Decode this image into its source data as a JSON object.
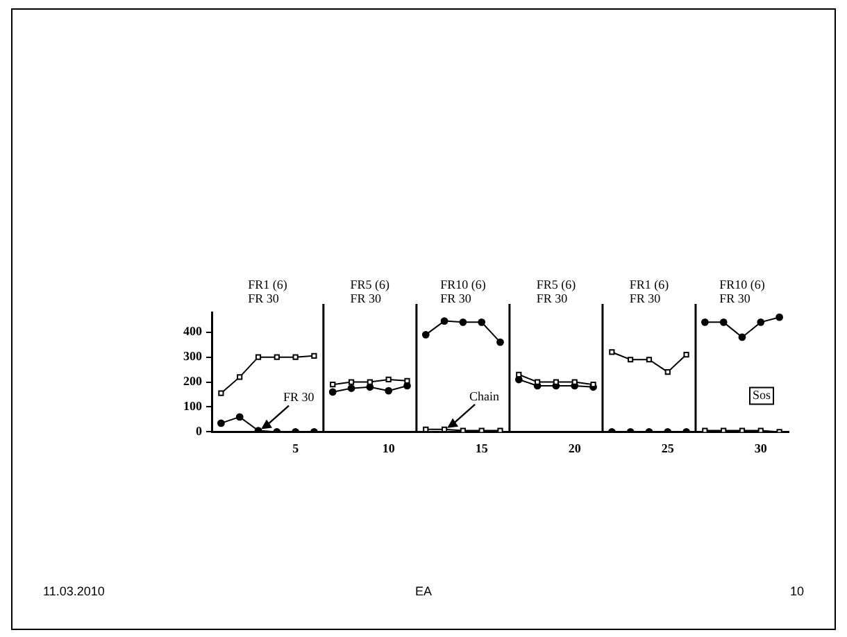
{
  "chart_data": {
    "type": "line",
    "x": [
      1,
      2,
      3,
      4,
      5,
      6,
      6.5,
      7,
      8,
      9,
      10,
      11,
      11.5,
      12,
      13,
      14,
      15,
      16,
      16.5,
      17,
      18,
      19,
      20,
      21,
      21.5,
      22,
      23,
      24,
      25,
      26,
      26.5,
      27,
      28,
      29,
      30,
      31
    ],
    "series": [
      {
        "color": "#000000",
        "marker": "square",
        "values": [
          155,
          220,
          300,
          300,
          300,
          305,
          null,
          190,
          200,
          200,
          210,
          205,
          null,
          10,
          10,
          5,
          5,
          5,
          null,
          230,
          200,
          200,
          200,
          190,
          null,
          320,
          290,
          290,
          240,
          310,
          null,
          5,
          5,
          5,
          5,
          0
        ]
      },
      {
        "color": "#000000",
        "marker": "circle",
        "values": [
          35,
          60,
          5,
          0,
          0,
          0,
          null,
          160,
          175,
          180,
          165,
          185,
          null,
          390,
          445,
          440,
          440,
          360,
          null,
          210,
          185,
          185,
          185,
          180,
          null,
          0,
          0,
          0,
          0,
          0,
          null,
          440,
          440,
          380,
          440,
          460
        ]
      }
    ],
    "xlim": [
      0.5,
      31.5
    ],
    "xticks": [
      5,
      10,
      15,
      20,
      25,
      30
    ],
    "ylim": [
      0,
      480
    ],
    "yticks": [
      0,
      100,
      200,
      300,
      400
    ],
    "ref_lines": [
      {
        "axis": "x",
        "value": 6.5
      },
      {
        "axis": "x",
        "value": 11.5
      },
      {
        "axis": "x",
        "value": 16.5
      },
      {
        "axis": "x",
        "value": 21.5
      },
      {
        "axis": "x",
        "value": 26.5
      }
    ],
    "annotations": [
      "FR1 (6)\nFR 30",
      "FR5 (6)\nFR 30",
      "FR10 (6)\nFR 30",
      "FR5 (6)\nFR 30",
      "FR1 (6)\nFR 30",
      "FR10 (6)\nFR 30",
      {
        "text": "FR 30",
        "x": 3,
        "y": 5
      },
      {
        "text": "Chain",
        "x": 13,
        "y": 10
      },
      "Sos",
      "11.03.2010",
      "EA",
      "10"
    ],
    "grid": false,
    "legend": false,
    "line_style": "solid"
  }
}
